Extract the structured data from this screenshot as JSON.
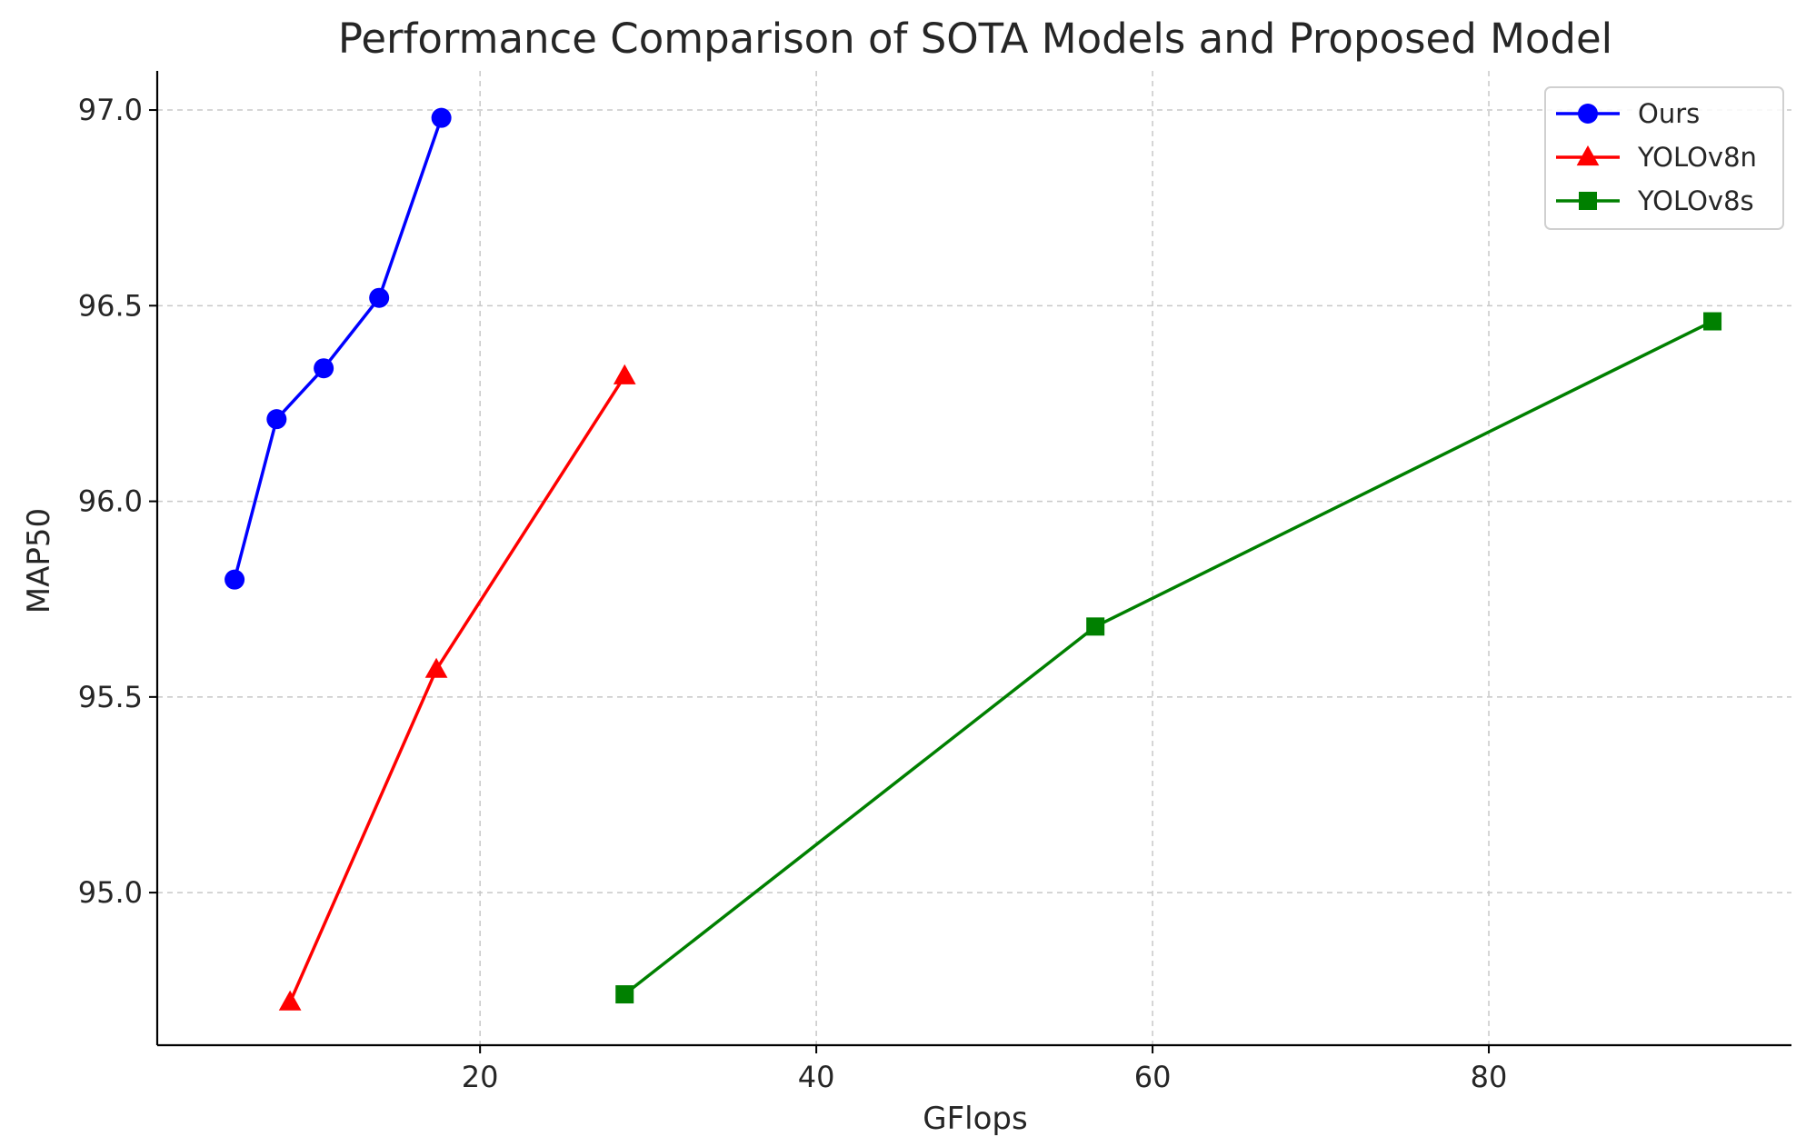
{
  "chart_data": {
    "type": "line",
    "title": "Performance Comparison of SOTA Models and Proposed Model",
    "xlabel": "GFlops",
    "ylabel": "MAP50",
    "xlim": [
      0.8,
      98.0
    ],
    "ylim": [
      94.61,
      97.1
    ],
    "xticks": [
      20,
      40,
      60,
      80
    ],
    "xtick_labels": [
      "20",
      "40",
      "60",
      "80"
    ],
    "yticks": [
      95.0,
      95.5,
      96.0,
      96.5,
      97.0
    ],
    "ytick_labels": [
      "95.0",
      "95.5",
      "96.0",
      "96.5",
      "97.0"
    ],
    "grid": true,
    "legend_position": "top-right",
    "series": [
      {
        "name": "Ours",
        "color": "#0000ff",
        "marker": "circle",
        "x": [
          5.4,
          7.9,
          10.7,
          14.0,
          17.7
        ],
        "y": [
          95.8,
          96.21,
          96.34,
          96.52,
          96.98
        ]
      },
      {
        "name": "YOLOv8n",
        "color": "#ff0000",
        "marker": "triangle",
        "x": [
          8.7,
          17.4,
          28.6
        ],
        "y": [
          94.72,
          95.57,
          96.32
        ]
      },
      {
        "name": "YOLOv8s",
        "color": "#008000",
        "marker": "square",
        "x": [
          28.6,
          56.6,
          93.3
        ],
        "y": [
          94.74,
          95.68,
          96.46
        ]
      }
    ]
  }
}
